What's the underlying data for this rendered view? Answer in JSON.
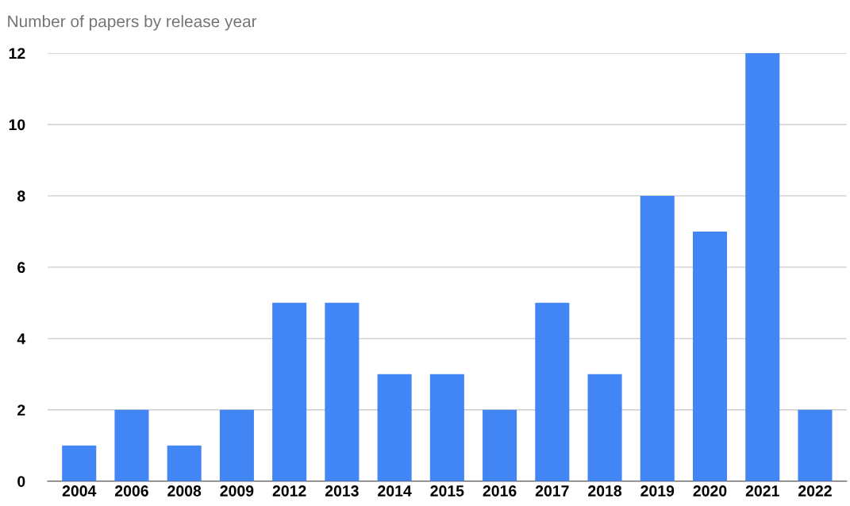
{
  "chart_data": {
    "type": "bar",
    "title": "Number of papers by release year",
    "categories": [
      "2004",
      "2006",
      "2008",
      "2009",
      "2012",
      "2013",
      "2014",
      "2015",
      "2016",
      "2017",
      "2018",
      "2019",
      "2020",
      "2021",
      "2022"
    ],
    "values": [
      1,
      2,
      1,
      2,
      5,
      5,
      3,
      3,
      2,
      5,
      3,
      8,
      7,
      12,
      2
    ],
    "color": "#4285f4",
    "ylim": [
      0,
      12
    ],
    "yticks": [
      0,
      2,
      4,
      6,
      8,
      10,
      12
    ],
    "grid": "y"
  }
}
